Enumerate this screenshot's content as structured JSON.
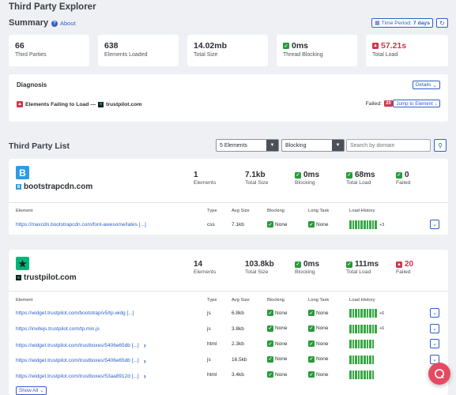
{
  "app": {
    "title": "Third Party Explorer"
  },
  "summary": {
    "title": "Summary",
    "about_label": "About",
    "time_period_label": "Time Period:",
    "time_period_value": "7 days",
    "stats": [
      {
        "value": "66",
        "label": "Third Parties"
      },
      {
        "value": "638",
        "label": "Elements Loaded"
      },
      {
        "value": "14.02mb",
        "label": "Total Size"
      },
      {
        "value": "0ms",
        "label": "Thread Blocking",
        "status": "good"
      },
      {
        "value": "57.21s",
        "label": "Total Load",
        "status": "bad"
      }
    ]
  },
  "diagnosis": {
    "title": "Diagnosis",
    "details_label": "Details",
    "message": "Elements Failing to Load —",
    "domain": "trustpilot.com",
    "failed_label": "Failed:",
    "failed_count": "20",
    "jump_label": "Jump to Element"
  },
  "list": {
    "title": "Third Party List",
    "elements_select": "5 Elements",
    "sort_select": "Blocking",
    "search_placeholder": "Search by domain",
    "show_all_label": "Show All",
    "table_headers": [
      "Element",
      "Type",
      "Avg Size",
      "Blocking",
      "Long Task",
      "Load History"
    ],
    "third_parties": [
      {
        "domain": "bootstrapcdn.com",
        "logo_letter": "B",
        "brand_color": "#2e9be6",
        "metrics": [
          {
            "value": "1",
            "label": "Elements"
          },
          {
            "value": "7.1kb",
            "label": "Total Size"
          },
          {
            "value": "0ms",
            "label": "Blocking",
            "status": "good"
          },
          {
            "value": "68ms",
            "label": "Total Load",
            "status": "good"
          },
          {
            "value": "0",
            "label": "Failed",
            "status": "good"
          }
        ],
        "rows": [
          {
            "url": "https://maxcdn.bootstrapcdn.com/font-awesome/lates [...]",
            "type": "css",
            "size": "7.1kb",
            "blocking": "None",
            "long_task": "None",
            "history_bars": 10,
            "history_more": "+3",
            "has_arrow": false,
            "expandable": true
          }
        ]
      },
      {
        "domain": "trustpilot.com",
        "logo_letter": "★",
        "brand_color": "#00b67a",
        "metrics": [
          {
            "value": "14",
            "label": "Elements"
          },
          {
            "value": "103.8kb",
            "label": "Total Size"
          },
          {
            "value": "0ms",
            "label": "Blocking",
            "status": "good"
          },
          {
            "value": "111ms",
            "label": "Total Load",
            "status": "good"
          },
          {
            "value": "20",
            "label": "Failed",
            "status": "bad"
          }
        ],
        "rows": [
          {
            "url": "https://widget.trustpilot.com/bootstrap/v5/tp.widg [...]",
            "type": "js",
            "size": "6.8kb",
            "blocking": "None",
            "long_task": "None",
            "history_bars": 10,
            "history_more": "+6",
            "has_arrow": false,
            "expandable": true
          },
          {
            "url": "https://invitejs.trustpilot.com/tp.min.js",
            "type": "js",
            "size": "3.8kb",
            "blocking": "None",
            "long_task": "None",
            "history_bars": 10,
            "history_more": "+6",
            "has_arrow": false,
            "expandable": true
          },
          {
            "url": "https://widget.trustpilot.com/trustboxes/5406e65db [...]",
            "type": "html",
            "size": "2.3kb",
            "blocking": "None",
            "long_task": "None",
            "history_bars": 9,
            "history_more": "",
            "has_arrow": true,
            "expandable": true
          },
          {
            "url": "https://widget.trustpilot.com/trustboxes/5406e65db [...]",
            "type": "js",
            "size": "16.5kb",
            "blocking": "None",
            "long_task": "None",
            "history_bars": 9,
            "history_more": "",
            "has_arrow": true,
            "expandable": true
          },
          {
            "url": "https://widget.trustpilot.com/trustboxes/53aa8912d [...]",
            "type": "html",
            "size": "3.4kb",
            "blocking": "None",
            "long_task": "None",
            "history_bars": 9,
            "history_more": "",
            "has_arrow": true,
            "expandable": false
          }
        ]
      }
    ]
  }
}
